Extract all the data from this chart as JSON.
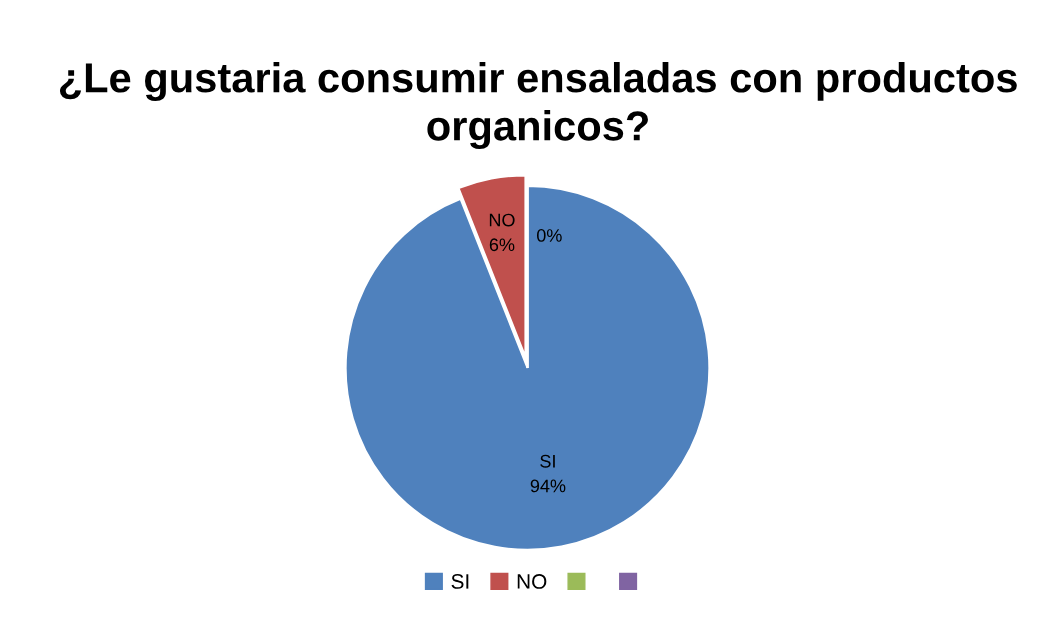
{
  "chart_data": {
    "type": "pie",
    "title": "¿Le gustaria consumir ensaladas con productos organicos?",
    "categories": [
      "SI",
      "NO",
      null,
      null
    ],
    "values": [
      94,
      6,
      0,
      0
    ],
    "colors": [
      "#4f81bd",
      "#c0504d",
      "#9bbb59",
      "#8064a2"
    ],
    "value_labels": [
      "94%",
      "6%",
      "0%",
      null
    ],
    "legend": "bottom"
  }
}
